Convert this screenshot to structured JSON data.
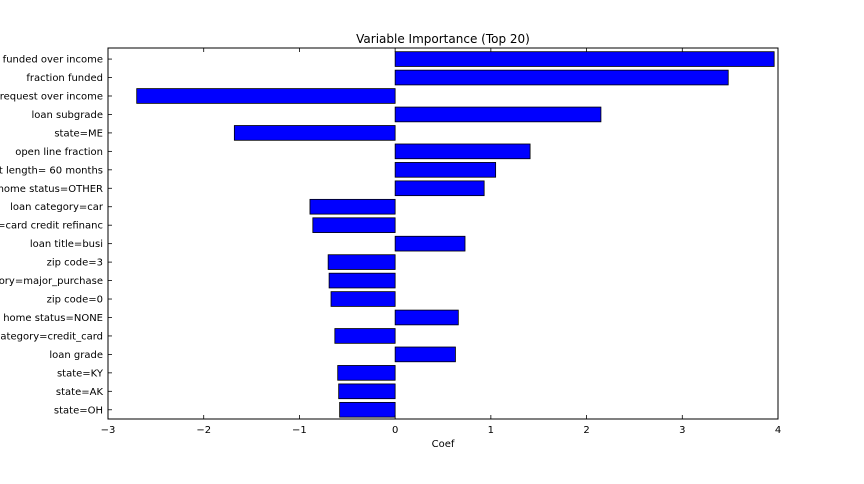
{
  "chart_data": {
    "type": "bar",
    "orientation": "horizontal",
    "title": "Variable Importance (Top 20)",
    "xlabel": "Coef",
    "ylabel": "",
    "xlim": [
      -3,
      4
    ],
    "xticks": [
      -3,
      -2,
      -1,
      0,
      1,
      2,
      3,
      4
    ],
    "grid": false,
    "bar_color": "#0000ff",
    "edge_color": "#000000",
    "categories": [
      "funded over income",
      "fraction funded",
      "request over income",
      "loan subgrade",
      "state=ME",
      "open line fraction",
      "t length= 60 months",
      "home status=OTHER",
      "loan category=car",
      "=card credit refinanc",
      "loan title=busi",
      "zip code=3",
      "ory=major_purchase",
      "zip code=0",
      "home status=NONE",
      "ategory=credit_card",
      "loan grade",
      "state=KY",
      "state=AK",
      "state=OH"
    ],
    "values": [
      3.96,
      3.48,
      -2.7,
      2.15,
      -1.68,
      1.41,
      1.05,
      0.93,
      -0.89,
      -0.86,
      0.73,
      -0.7,
      -0.69,
      -0.67,
      0.66,
      -0.63,
      0.63,
      -0.6,
      -0.59,
      -0.58
    ]
  }
}
